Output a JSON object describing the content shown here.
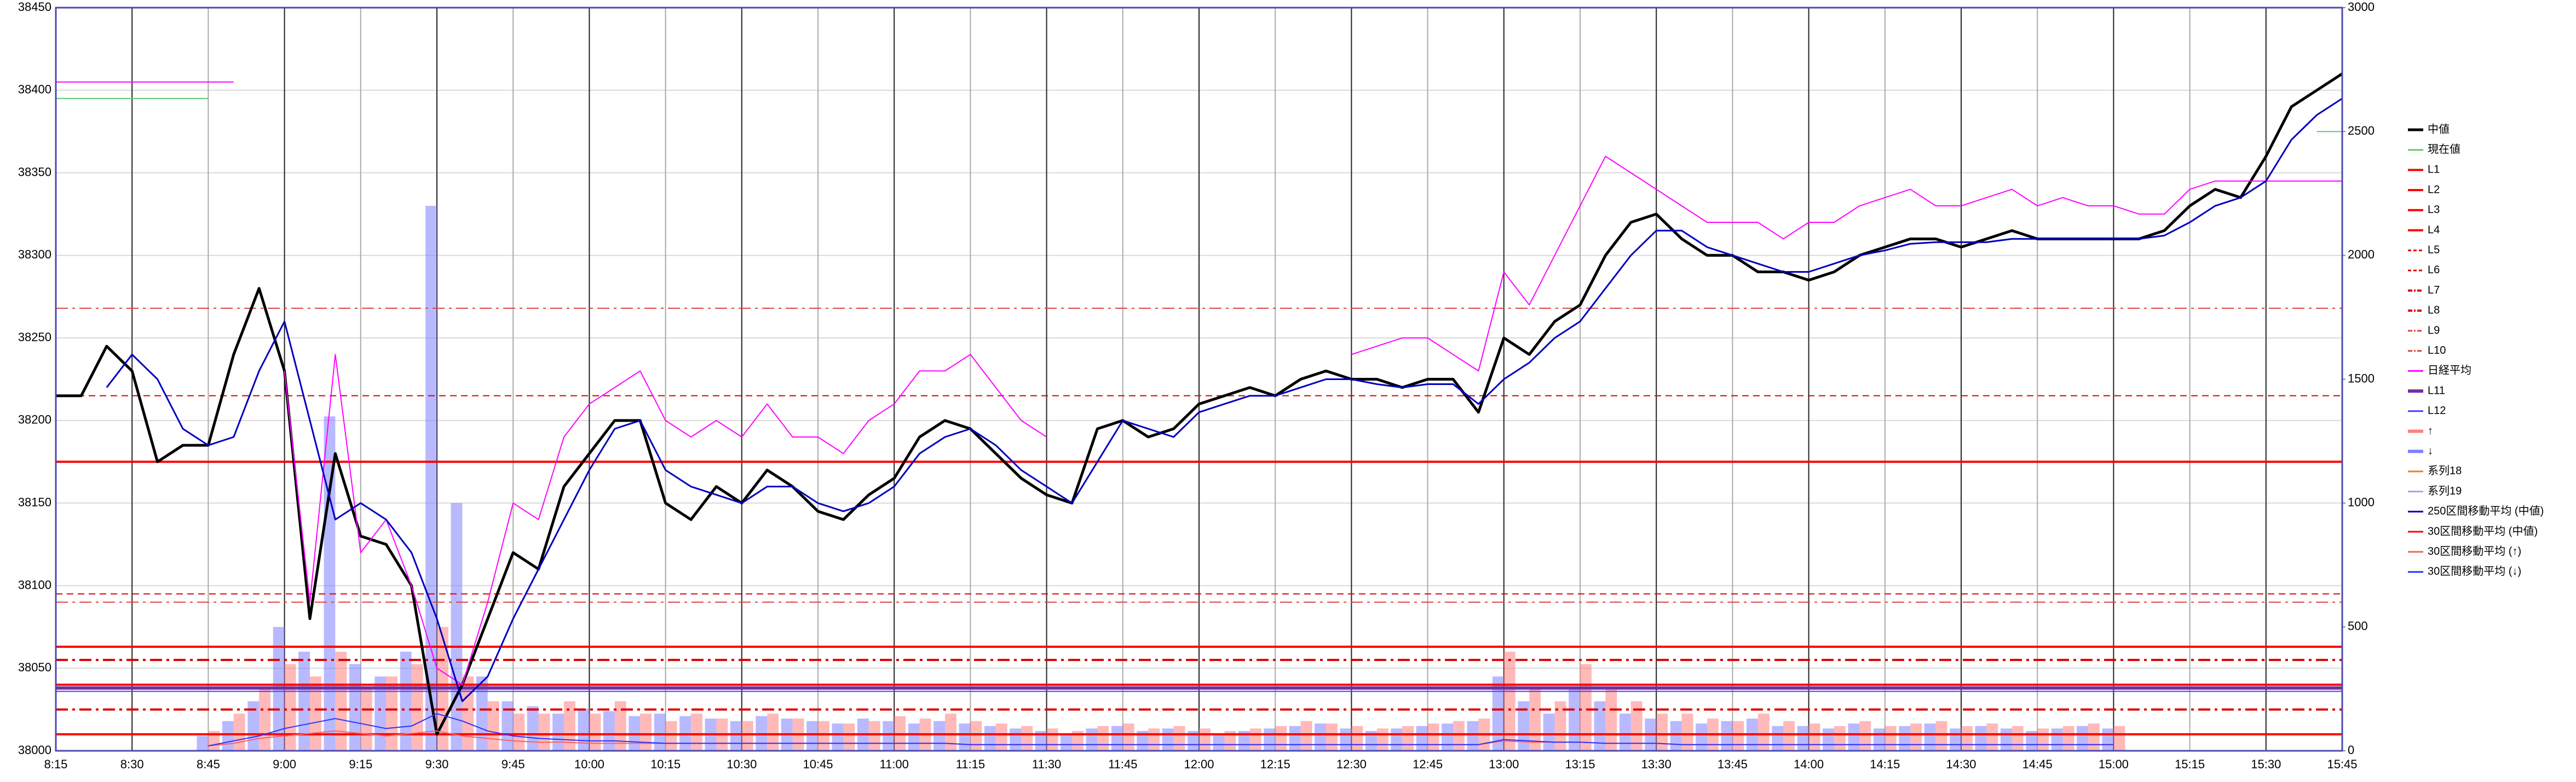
{
  "chart_data": {
    "type": "line",
    "x": [
      495,
      500,
      505,
      510,
      515,
      520,
      525,
      530,
      535,
      540,
      545,
      550,
      555,
      560,
      565,
      570,
      575,
      580,
      585,
      590,
      595,
      600,
      605,
      610,
      615,
      620,
      625,
      630,
      635,
      640,
      645,
      650,
      655,
      660,
      665,
      670,
      675,
      680,
      685,
      690,
      695,
      700,
      705,
      710,
      715,
      720,
      725,
      730,
      735,
      740,
      745,
      750,
      755,
      760,
      765,
      770,
      775,
      780,
      785,
      790,
      795,
      800,
      805,
      810,
      815,
      820,
      825,
      830,
      835,
      840,
      845,
      850,
      855,
      860,
      865,
      870,
      875,
      880,
      885,
      890,
      895,
      900,
      905,
      910,
      915,
      920,
      925,
      930,
      935,
      940,
      945
    ],
    "xlim": [
      495,
      945
    ],
    "xticks": [
      {
        "value": 495,
        "label": "8:15"
      },
      {
        "value": 510,
        "label": "8:30"
      },
      {
        "value": 525,
        "label": "8:45"
      },
      {
        "value": 540,
        "label": "9:00"
      },
      {
        "value": 555,
        "label": "9:15"
      },
      {
        "value": 570,
        "label": "9:30"
      },
      {
        "value": 585,
        "label": "9:45"
      },
      {
        "value": 600,
        "label": "10:00"
      },
      {
        "value": 615,
        "label": "10:15"
      },
      {
        "value": 630,
        "label": "10:30"
      },
      {
        "value": 645,
        "label": "10:45"
      },
      {
        "value": 660,
        "label": "11:00"
      },
      {
        "value": 675,
        "label": "11:15"
      },
      {
        "value": 690,
        "label": "11:30"
      },
      {
        "value": 705,
        "label": "11:45"
      },
      {
        "value": 720,
        "label": "12:00"
      },
      {
        "value": 735,
        "label": "12:15"
      },
      {
        "value": 750,
        "label": "12:30"
      },
      {
        "value": 765,
        "label": "12:45"
      },
      {
        "value": 780,
        "label": "13:00"
      },
      {
        "value": 795,
        "label": "13:15"
      },
      {
        "value": 810,
        "label": "13:30"
      },
      {
        "value": 825,
        "label": "13:45"
      },
      {
        "value": 840,
        "label": "14:00"
      },
      {
        "value": 855,
        "label": "14:15"
      },
      {
        "value": 870,
        "label": "14:30"
      },
      {
        "value": 885,
        "label": "14:45"
      },
      {
        "value": 900,
        "label": "15:00"
      },
      {
        "value": 915,
        "label": "15:15"
      },
      {
        "value": 930,
        "label": "15:30"
      },
      {
        "value": 945,
        "label": "15:45"
      }
    ],
    "ylim": [
      38000,
      38450
    ],
    "yticks": [
      38000,
      38050,
      38100,
      38150,
      38200,
      38250,
      38300,
      38350,
      38400,
      38450
    ],
    "y2lim": [
      0,
      3000
    ],
    "y2ticks": [
      0,
      500,
      1000,
      1500,
      2000,
      2500,
      3000
    ],
    "grid": true,
    "legend": "right",
    "series": [
      {
        "name": "中値",
        "color": "#000000",
        "width": 5,
        "dash": "solid",
        "values": [
          38215,
          38215,
          38245,
          38230,
          38175,
          38185,
          38185,
          38240,
          38280,
          38230,
          38080,
          38180,
          38130,
          38125,
          38100,
          38010,
          38040,
          38080,
          38120,
          38110,
          38160,
          38180,
          38200,
          38200,
          38150,
          38140,
          38160,
          38150,
          38170,
          38160,
          38145,
          38140,
          38155,
          38165,
          38190,
          38200,
          38195,
          38180,
          38165,
          38155,
          38150,
          38195,
          38200,
          38190,
          38195,
          38210,
          38215,
          38220,
          38215,
          38225,
          38230,
          38225,
          38225,
          38220,
          38225,
          38225,
          38205,
          38250,
          38240,
          38260,
          38270,
          38300,
          38320,
          38325,
          38310,
          38300,
          38300,
          38290,
          38290,
          38285,
          38290,
          38300,
          38305,
          38310,
          38310,
          38305,
          38310,
          38315,
          38310,
          38310,
          38310,
          38310,
          38310,
          38315,
          38330,
          38340,
          38335,
          38360,
          38390,
          38400,
          38410
        ]
      },
      {
        "name": "現在値",
        "color": "#5cc87a",
        "width": 2,
        "dash": "solid",
        "values": [
          38395,
          38395,
          38395,
          38395,
          38395,
          38395,
          38395,
          null,
          null,
          null,
          null,
          null,
          null,
          null,
          null,
          null,
          null,
          null,
          null,
          null,
          null,
          null,
          null,
          null,
          null,
          null,
          null,
          null,
          null,
          null,
          null,
          null,
          null,
          null,
          null,
          null,
          null,
          null,
          null,
          null,
          null,
          null,
          null,
          null,
          null,
          null,
          null,
          null,
          null,
          null,
          null,
          null,
          null,
          null,
          null,
          null,
          null,
          null,
          null,
          null,
          null,
          null,
          null,
          null,
          null,
          null,
          null,
          null,
          null,
          null,
          null,
          null,
          null,
          null,
          null,
          null,
          null,
          null,
          null,
          null,
          null,
          null,
          null,
          null,
          null,
          null,
          null,
          null,
          null,
          38375,
          38375
        ]
      },
      {
        "name": "L1",
        "color": "#ff0000",
        "width": 4,
        "dash": "solid",
        "level": 38175
      },
      {
        "name": "L2",
        "color": "#ff0000",
        "width": 4,
        "dash": "solid",
        "level": 38063
      },
      {
        "name": "L3",
        "color": "#ff0000",
        "width": 4,
        "dash": "solid",
        "level": 38010
      },
      {
        "name": "L4",
        "color": "#ff0000",
        "width": 4,
        "dash": "solid",
        "level": 38040
      },
      {
        "name": "L5",
        "color": "#e00000",
        "width": 2,
        "dash": "dashed",
        "level": 38215
      },
      {
        "name": "L6",
        "color": "#e00000",
        "width": 2,
        "dash": "dashed",
        "level": 38095
      },
      {
        "name": "L7",
        "color": "#e00000",
        "width": 4,
        "dash": "dashdot",
        "level": 38055
      },
      {
        "name": "L8",
        "color": "#e00000",
        "width": 4,
        "dash": "dashdot",
        "level": 38025
      },
      {
        "name": "L9",
        "color": "#e04040",
        "width": 2,
        "dash": "dashdot",
        "level": 38268
      },
      {
        "name": "L10",
        "color": "#e04040",
        "width": 2,
        "dash": "dashdot",
        "level": 38090
      },
      {
        "name": "日経平均",
        "color": "#ff00ff",
        "width": 2,
        "dash": "solid",
        "values": [
          38405,
          38405,
          38405,
          38405,
          38405,
          38405,
          38405,
          38405,
          null,
          38230,
          38090,
          38240,
          38120,
          38140,
          38100,
          38050,
          38040,
          38090,
          38150,
          38140,
          38190,
          38210,
          38220,
          38230,
          38200,
          38190,
          38200,
          38190,
          38210,
          38190,
          38190,
          38180,
          38200,
          38210,
          38230,
          38230,
          38240,
          38220,
          38200,
          38190,
          null,
          null,
          null,
          null,
          null,
          null,
          null,
          null,
          null,
          null,
          null,
          38240,
          38245,
          38250,
          38250,
          38240,
          38230,
          38290,
          38270,
          38300,
          38330,
          38360,
          38350,
          38340,
          38330,
          38320,
          38320,
          38320,
          38310,
          38320,
          38320,
          38330,
          38335,
          38340,
          38330,
          38330,
          38335,
          38340,
          38330,
          38335,
          38330,
          38330,
          38325,
          38325,
          38340,
          38345,
          38345,
          38345,
          38345,
          38345,
          38345
        ]
      },
      {
        "name": "L11",
        "color": "#7030a0",
        "width": 6,
        "dash": "solid",
        "level": 38038
      },
      {
        "name": "L12",
        "color": "#4040ff",
        "width": 2,
        "dash": "solid",
        "level": 38036
      },
      {
        "name": "↑",
        "color": "#ff8080",
        "kind": "bar",
        "axis": "y2",
        "values": [
          null,
          null,
          null,
          null,
          null,
          null,
          80,
          150,
          250,
          350,
          300,
          400,
          250,
          300,
          350,
          500,
          300,
          200,
          150,
          150,
          200,
          150,
          200,
          150,
          120,
          150,
          130,
          120,
          150,
          130,
          120,
          110,
          120,
          140,
          130,
          150,
          120,
          110,
          100,
          90,
          80,
          100,
          110,
          90,
          100,
          90,
          80,
          90,
          100,
          120,
          110,
          100,
          90,
          100,
          110,
          120,
          130,
          400,
          250,
          200,
          350,
          250,
          200,
          150,
          150,
          130,
          120,
          150,
          120,
          110,
          100,
          120,
          100,
          110,
          120,
          100,
          110,
          100,
          90,
          100,
          110,
          100,
          null,
          null,
          null,
          null,
          null,
          null,
          null,
          null,
          null
        ]
      },
      {
        "name": "↓",
        "color": "#8080ff",
        "kind": "bar",
        "axis": "y2",
        "values": [
          null,
          null,
          null,
          null,
          null,
          null,
          60,
          120,
          200,
          500,
          400,
          1350,
          350,
          300,
          400,
          2200,
          1000,
          300,
          200,
          180,
          150,
          170,
          160,
          140,
          150,
          140,
          130,
          120,
          140,
          130,
          120,
          110,
          130,
          120,
          110,
          120,
          110,
          100,
          90,
          80,
          70,
          90,
          100,
          80,
          90,
          80,
          70,
          80,
          90,
          100,
          110,
          90,
          80,
          90,
          100,
          110,
          120,
          300,
          200,
          150,
          250,
          200,
          150,
          130,
          120,
          110,
          120,
          130,
          100,
          100,
          90,
          110,
          90,
          100,
          110,
          90,
          100,
          90,
          80,
          90,
          100,
          90,
          null,
          null,
          null,
          null,
          null,
          null,
          null,
          null,
          null
        ]
      },
      {
        "name": "系列18",
        "color": "#ed7d31"
      },
      {
        "name": "系列19",
        "color": "#a5a5e0"
      },
      {
        "name": "250区間移動平均 (中値)",
        "color": "#0000c0",
        "width": 3,
        "dash": "solid",
        "values": [
          null,
          null,
          38220,
          38240,
          38225,
          38195,
          38185,
          38190,
          38230,
          38260,
          38200,
          38140,
          38150,
          38140,
          38120,
          38080,
          38030,
          38045,
          38080,
          38110,
          38140,
          38170,
          38195,
          38200,
          38170,
          38160,
          38155,
          38150,
          38160,
          38160,
          38150,
          38145,
          38150,
          38160,
          38180,
          38190,
          38195,
          38185,
          38170,
          38160,
          38150,
          38175,
          38200,
          38195,
          38190,
          38205,
          38210,
          38215,
          38215,
          38220,
          38225,
          38225,
          38222,
          38220,
          38222,
          38222,
          38210,
          38225,
          38235,
          38250,
          38260,
          38280,
          38300,
          38315,
          38315,
          38305,
          38300,
          38295,
          38290,
          38290,
          38295,
          38300,
          38303,
          38307,
          38308,
          38308,
          38308,
          38310,
          38310,
          38310,
          38310,
          38310,
          38310,
          38312,
          38320,
          38330,
          38335,
          38345,
          38370,
          38385,
          38395
        ]
      },
      {
        "name": "30区間移動平均 (中値)",
        "color": "#ff0000"
      },
      {
        "name": "30区間移動平均 (↑)",
        "color": "#ff6060",
        "width": 2,
        "dash": "solid",
        "axis": "y2",
        "values": [
          null,
          null,
          null,
          null,
          null,
          null,
          20,
          30,
          50,
          60,
          70,
          80,
          70,
          60,
          70,
          80,
          60,
          50,
          40,
          35,
          35,
          30,
          30,
          30,
          30,
          30,
          30,
          30,
          30,
          30,
          30,
          30,
          30,
          30,
          30,
          30,
          25,
          25,
          25,
          25,
          25,
          25,
          25,
          25,
          25,
          25,
          25,
          25,
          25,
          25,
          25,
          25,
          25,
          25,
          25,
          25,
          25,
          40,
          35,
          35,
          35,
          30,
          30,
          30,
          25,
          25,
          25,
          25,
          25,
          25,
          25,
          25,
          25,
          25,
          25,
          25,
          25,
          25,
          25,
          25,
          25,
          25,
          null,
          null,
          null,
          null,
          null,
          null,
          null,
          null,
          null
        ]
      },
      {
        "name": "30区間移動平均 (↓)",
        "color": "#3030ff",
        "width": 2,
        "dash": "solid",
        "axis": "y2",
        "values": [
          null,
          null,
          null,
          null,
          null,
          null,
          20,
          40,
          60,
          90,
          110,
          130,
          110,
          90,
          100,
          150,
          120,
          80,
          60,
          50,
          45,
          40,
          40,
          35,
          30,
          30,
          30,
          30,
          30,
          30,
          30,
          30,
          30,
          30,
          30,
          30,
          25,
          25,
          25,
          25,
          25,
          25,
          25,
          25,
          25,
          25,
          25,
          25,
          25,
          25,
          25,
          25,
          25,
          25,
          25,
          25,
          25,
          45,
          40,
          35,
          35,
          30,
          30,
          30,
          25,
          25,
          25,
          25,
          25,
          25,
          25,
          25,
          25,
          25,
          25,
          25,
          25,
          25,
          25,
          25,
          25,
          25,
          null,
          null,
          null,
          null,
          null,
          null,
          null,
          null,
          null
        ]
      }
    ]
  }
}
